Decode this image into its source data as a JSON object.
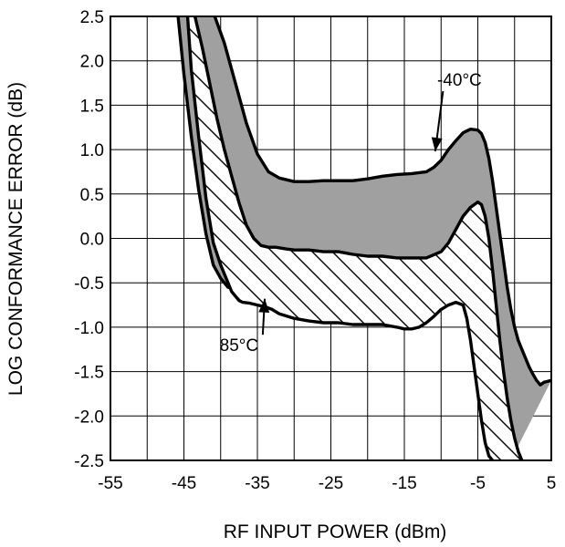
{
  "chart_data": {
    "type": "area",
    "title": "",
    "xlabel": "RF INPUT POWER (dBm)",
    "ylabel": "LOG CONFORMANCE ERROR (dB)",
    "xlim": [
      -55,
      5
    ],
    "ylim": [
      -2.5,
      2.5
    ],
    "x_ticks": [
      -55,
      -45,
      -35,
      -25,
      -15,
      -5,
      5
    ],
    "y_ticks": [
      2.5,
      2.0,
      1.5,
      1.0,
      0.5,
      0.0,
      -0.5,
      -1.0,
      -1.5,
      -2.0,
      -2.5
    ],
    "x_tick_labels": [
      "-55",
      "-45",
      "-35",
      "-25",
      "-15",
      "-5",
      "5"
    ],
    "y_tick_labels": [
      "2.5",
      "2.0",
      "1.5",
      "1.0",
      "0.5",
      "0.0",
      "-0.5",
      "-1.0",
      "-1.5",
      "-2.0",
      "-2.5"
    ],
    "grid": true,
    "x_grid_step": 5,
    "y_grid_step": 0.5,
    "series": [
      {
        "name": "-40°C",
        "style": "solid gray fill",
        "upper": {
          "x": [
            -40.8,
            -39.5,
            -38.0,
            -36.5,
            -35.0,
            -33.5,
            -32.0,
            -30.0,
            -28.0,
            -26.0,
            -24.0,
            -22.0,
            -20.0,
            -18.0,
            -16.0,
            -14.0,
            -12.0,
            -11.0,
            -10.0,
            -9.0,
            -8.0,
            -7.0,
            -6.0,
            -5.0,
            -4.5,
            -4.0,
            -3.5,
            -3.0,
            -2.5,
            -2.0,
            -1.5,
            -1.0,
            -0.5,
            0.0,
            0.5,
            1.0,
            1.5,
            2.0,
            2.5,
            3.0,
            3.5,
            4.0,
            5.0
          ],
          "y": [
            2.5,
            2.2,
            1.75,
            1.3,
            0.95,
            0.75,
            0.68,
            0.64,
            0.64,
            0.65,
            0.65,
            0.65,
            0.67,
            0.7,
            0.72,
            0.73,
            0.75,
            0.8,
            0.88,
            1.0,
            1.1,
            1.19,
            1.23,
            1.22,
            1.18,
            1.08,
            0.9,
            0.65,
            0.35,
            0.05,
            -0.25,
            -0.55,
            -0.8,
            -1.0,
            -1.15,
            -1.25,
            -1.35,
            -1.45,
            -1.53,
            -1.6,
            -1.65,
            -1.62,
            -1.6
          ]
        },
        "lower": {
          "x": [
            -45.8,
            -45.0,
            -44.0,
            -43.0,
            -42.0,
            -41.0,
            -40.0,
            -39.5,
            -39.0,
            -38.0,
            -37.0,
            -36.0,
            -35.0,
            -34.0,
            -33.0,
            -32.0,
            -31.0,
            -30.0,
            -28.0,
            -26.0,
            -24.0,
            -22.0,
            -20.0,
            -18.0,
            -16.0,
            -14.0,
            -12.0,
            -11.0,
            -10.0,
            -9.0,
            -8.0,
            -7.0,
            -6.0,
            -5.5,
            -5.0,
            -4.5,
            -4.0,
            -3.5,
            -3.0,
            -2.5,
            -2.0,
            -1.5,
            -1.0,
            -0.5
          ],
          "y": [
            2.5,
            1.85,
            1.15,
            0.55,
            0.05,
            -0.3,
            -0.45,
            -0.5,
            -0.55,
            -0.57,
            -0.57,
            -0.55,
            -0.52,
            -0.51,
            -0.5,
            -0.5,
            -0.5,
            -0.5,
            -0.5,
            -0.5,
            -0.5,
            -0.5,
            -0.51,
            -0.51,
            -0.5,
            -0.5,
            -0.48,
            -0.42,
            -0.3,
            -0.18,
            -0.15,
            -0.25,
            -0.45,
            -0.75,
            -1.05,
            -1.35,
            -1.65,
            -1.95,
            -2.2,
            -2.4,
            -2.5,
            -2.5,
            -2.5,
            -2.5
          ]
        }
      },
      {
        "name": "85°C",
        "style": "diagonal hatch fill",
        "upper": {
          "x": [
            -43.5,
            -42.5,
            -41.5,
            -40.5,
            -39.5,
            -38.5,
            -37.5,
            -36.5,
            -35.5,
            -34.5,
            -33.5,
            -32.5,
            -31.0,
            -30.0,
            -28.0,
            -26.0,
            -24.0,
            -22.0,
            -20.0,
            -18.0,
            -16.0,
            -14.0,
            -12.0,
            -10.0,
            -9.0,
            -8.0,
            -7.0,
            -6.0,
            -5.0,
            -4.5,
            -4.0,
            -3.5,
            -3.0,
            -2.5,
            -2.0,
            -1.5,
            -1.0,
            -0.5,
            0.0,
            0.5,
            1.0
          ],
          "y": [
            2.5,
            2.15,
            1.75,
            1.35,
            1.0,
            0.7,
            0.4,
            0.15,
            0.0,
            -0.08,
            -0.1,
            -0.1,
            -0.12,
            -0.13,
            -0.13,
            -0.15,
            -0.15,
            -0.18,
            -0.2,
            -0.2,
            -0.22,
            -0.22,
            -0.22,
            -0.15,
            -0.05,
            0.1,
            0.25,
            0.35,
            0.41,
            0.38,
            0.25,
            0.0,
            -0.35,
            -0.75,
            -1.15,
            -1.5,
            -1.8,
            -2.05,
            -2.25,
            -2.4,
            -2.5
          ]
        },
        "lower": {
          "x": [
            -44.5,
            -44.0,
            -43.0,
            -42.0,
            -41.0,
            -40.0,
            -39.5,
            -39.0,
            -38.5,
            -38.0,
            -37.5,
            -37.0,
            -36.0,
            -35.0,
            -34.0,
            -33.0,
            -32.0,
            -30.0,
            -28.0,
            -26.0,
            -24.0,
            -22.0,
            -20.0,
            -18.0,
            -16.0,
            -15.0,
            -14.0,
            -13.0,
            -12.0,
            -11.0,
            -10.0,
            -9.0,
            -8.0,
            -7.0,
            -6.5,
            -6.0,
            -5.5,
            -5.0,
            -4.5,
            -4.0,
            -3.5,
            -3.0
          ],
          "y": [
            2.5,
            1.9,
            1.15,
            0.45,
            -0.05,
            -0.3,
            -0.4,
            -0.5,
            -0.6,
            -0.65,
            -0.7,
            -0.72,
            -0.73,
            -0.75,
            -0.77,
            -0.8,
            -0.85,
            -0.9,
            -0.93,
            -0.95,
            -0.95,
            -0.97,
            -0.97,
            -0.97,
            -1.0,
            -1.02,
            -1.02,
            -1.0,
            -0.95,
            -0.88,
            -0.8,
            -0.75,
            -0.72,
            -0.75,
            -0.9,
            -1.15,
            -1.45,
            -1.75,
            -2.05,
            -2.3,
            -2.45,
            -2.5
          ]
        }
      }
    ],
    "annotations": [
      {
        "text": "-40°C",
        "x": -7.5,
        "y": 1.72,
        "arrow_to": [
          -10.8,
          0.98
        ]
      },
      {
        "text": "85°C",
        "x": -37.5,
        "y": -1.27,
        "arrow_to": [
          -34.0,
          -0.68
        ]
      }
    ],
    "colors": {
      "fill": "#a0a0a0",
      "line": "#000000",
      "grid": "#000000"
    }
  }
}
